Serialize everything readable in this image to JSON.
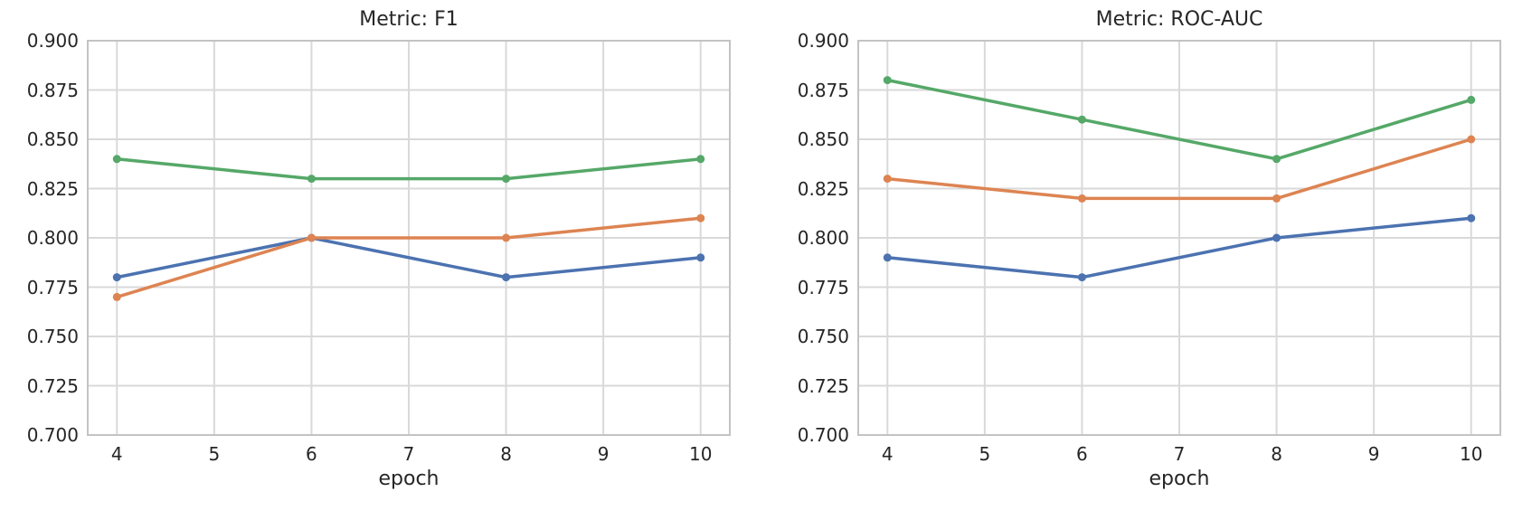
{
  "figure": {
    "background": "#ffffff"
  },
  "colors": {
    "grid": "#d9d9d9",
    "spine": "#c3c3c3",
    "text": "#262626",
    "series_blue": "#4C72B0",
    "series_orange": "#DD8452",
    "series_green": "#55A868"
  },
  "chart_data": [
    {
      "type": "line",
      "title": "Metric: F1",
      "xlabel": "epoch",
      "ylabel": "",
      "x": [
        4,
        6,
        8,
        10
      ],
      "xlim": [
        3.7,
        10.3
      ],
      "ylim": [
        0.7,
        0.9
      ],
      "xticks": [
        4,
        5,
        6,
        7,
        8,
        9,
        10
      ],
      "xtick_labels": [
        "4",
        "5",
        "6",
        "7",
        "8",
        "9",
        "10"
      ],
      "yticks": [
        0.7,
        0.725,
        0.75,
        0.775,
        0.8,
        0.825,
        0.85,
        0.875,
        0.9
      ],
      "ytick_labels": [
        "0.700",
        "0.725",
        "0.750",
        "0.775",
        "0.800",
        "0.825",
        "0.850",
        "0.875",
        "0.900"
      ],
      "grid": true,
      "legend": "none",
      "marker": "circle",
      "series": [
        {
          "name": "series-blue",
          "color": "#4C72B0",
          "values": [
            0.78,
            0.8,
            0.78,
            0.79
          ]
        },
        {
          "name": "series-orange",
          "color": "#DD8452",
          "values": [
            0.77,
            0.8,
            0.8,
            0.81
          ]
        },
        {
          "name": "series-green",
          "color": "#55A868",
          "values": [
            0.84,
            0.83,
            0.83,
            0.84
          ]
        }
      ]
    },
    {
      "type": "line",
      "title": "Metric: ROC-AUC",
      "xlabel": "epoch",
      "ylabel": "",
      "x": [
        4,
        6,
        8,
        10
      ],
      "xlim": [
        3.7,
        10.3
      ],
      "ylim": [
        0.7,
        0.9
      ],
      "xticks": [
        4,
        5,
        6,
        7,
        8,
        9,
        10
      ],
      "xtick_labels": [
        "4",
        "5",
        "6",
        "7",
        "8",
        "9",
        "10"
      ],
      "yticks": [
        0.7,
        0.725,
        0.75,
        0.775,
        0.8,
        0.825,
        0.85,
        0.875,
        0.9
      ],
      "ytick_labels": [
        "0.700",
        "0.725",
        "0.750",
        "0.775",
        "0.800",
        "0.825",
        "0.850",
        "0.875",
        "0.900"
      ],
      "grid": true,
      "legend": "none",
      "marker": "circle",
      "series": [
        {
          "name": "series-blue",
          "color": "#4C72B0",
          "values": [
            0.79,
            0.78,
            0.8,
            0.81
          ]
        },
        {
          "name": "series-orange",
          "color": "#DD8452",
          "values": [
            0.83,
            0.82,
            0.82,
            0.85
          ]
        },
        {
          "name": "series-green",
          "color": "#55A868",
          "values": [
            0.88,
            0.86,
            0.84,
            0.87
          ]
        }
      ]
    }
  ]
}
